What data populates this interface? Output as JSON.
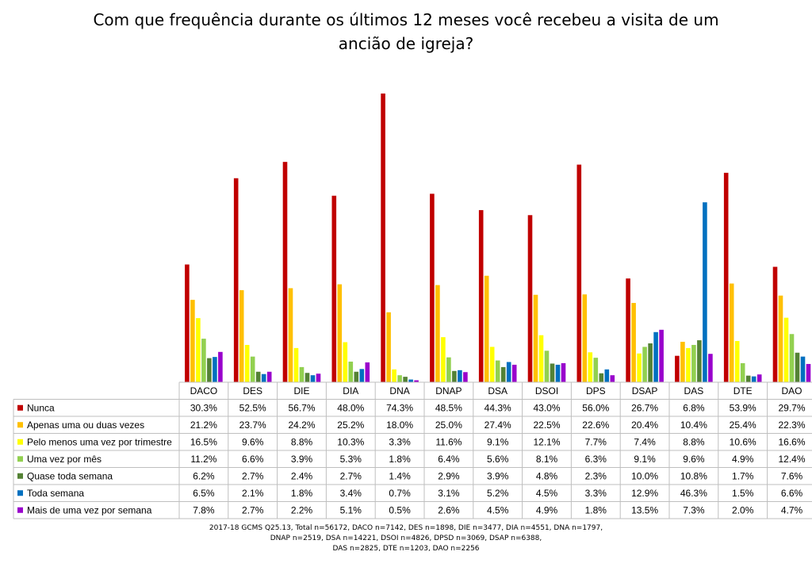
{
  "chart_data": {
    "type": "bar",
    "title": [
      "Com que frequência durante os últimos 12 meses você recebeu a visita de um",
      "ancião de igreja?"
    ],
    "xlabel": "",
    "ylabel": "",
    "ylim": [
      0,
      80
    ],
    "grid": false,
    "legend": "data-table-left",
    "categories": [
      "DACO",
      "DES",
      "DIE",
      "DIA",
      "DNA",
      "DNAP",
      "DSA",
      "DSOI",
      "DPS",
      "DSAP",
      "DAS",
      "DTE",
      "DAO"
    ],
    "series": [
      {
        "name": "Nunca",
        "color": "#C00000",
        "values": [
          30.3,
          52.5,
          56.7,
          48.0,
          74.3,
          48.5,
          44.3,
          43.0,
          56.0,
          26.7,
          6.8,
          53.9,
          29.7
        ]
      },
      {
        "name": "Apenas uma ou duas vezes",
        "color": "#FFC000",
        "values": [
          21.2,
          23.7,
          24.2,
          25.2,
          18.0,
          25.0,
          27.4,
          22.5,
          22.6,
          20.4,
          10.4,
          25.4,
          22.3
        ]
      },
      {
        "name": "Pelo menos uma vez por trimestre",
        "color": "#FFFF00",
        "values": [
          16.5,
          9.6,
          8.8,
          10.3,
          3.3,
          11.6,
          9.1,
          12.1,
          7.7,
          7.4,
          8.8,
          10.6,
          16.6
        ]
      },
      {
        "name": "Uma vez por mês",
        "color": "#92D050",
        "values": [
          11.2,
          6.6,
          3.9,
          5.3,
          1.8,
          6.4,
          5.6,
          8.1,
          6.3,
          9.1,
          9.6,
          4.9,
          12.4
        ]
      },
      {
        "name": "Quase toda semana",
        "color": "#548235",
        "values": [
          6.2,
          2.7,
          2.4,
          2.7,
          1.4,
          2.9,
          3.9,
          4.8,
          2.3,
          10.0,
          10.8,
          1.7,
          7.6
        ]
      },
      {
        "name": "Toda semana",
        "color": "#0070C0",
        "values": [
          6.5,
          2.1,
          1.8,
          3.4,
          0.7,
          3.1,
          5.2,
          4.5,
          3.3,
          12.9,
          46.3,
          1.5,
          6.6
        ]
      },
      {
        "name": "Mais de uma vez por semana",
        "color": "#9900CC",
        "values": [
          7.8,
          2.7,
          2.2,
          5.1,
          0.5,
          2.6,
          4.5,
          4.9,
          1.8,
          13.5,
          7.3,
          2.0,
          4.7
        ]
      }
    ],
    "table": {
      "rows": [
        [
          "30.3%",
          "52.5%",
          "56.7%",
          "48.0%",
          "74.3%",
          "48.5%",
          "44.3%",
          "43.0%",
          "56.0%",
          "26.7%",
          "6.8%",
          "53.9%",
          "29.7%"
        ],
        [
          "21.2%",
          "23.7%",
          "24.2%",
          "25.2%",
          "18.0%",
          "25.0%",
          "27.4%",
          "22.5%",
          "22.6%",
          "20.4%",
          "10.4%",
          "25.4%",
          "22.3%"
        ],
        [
          "16.5%",
          "9.6%",
          "8.8%",
          "10.3%",
          "3.3%",
          "11.6%",
          "9.1%",
          "12.1%",
          "7.7%",
          "7.4%",
          "8.8%",
          "10.6%",
          "16.6%"
        ],
        [
          "11.2%",
          "6.6%",
          "3.9%",
          "5.3%",
          "1.8%",
          "6.4%",
          "5.6%",
          "8.1%",
          "6.3%",
          "9.1%",
          "9.6%",
          "4.9%",
          "12.4%"
        ],
        [
          "6.2%",
          "2.7%",
          "2.4%",
          "2.7%",
          "1.4%",
          "2.9%",
          "3.9%",
          "4.8%",
          "2.3%",
          "10.0%",
          "10.8%",
          "1.7%",
          "7.6%"
        ],
        [
          "6.5%",
          "2.1%",
          "1.8%",
          "3.4%",
          "0.7%",
          "3.1%",
          "5.2%",
          "4.5%",
          "3.3%",
          "12.9%",
          "46.3%",
          "1.5%",
          "6.6%"
        ],
        [
          "7.8%",
          "2.7%",
          "2.2%",
          "5.1%",
          "0.5%",
          "2.6%",
          "4.5%",
          "4.9%",
          "1.8%",
          "13.5%",
          "7.3%",
          "2.0%",
          "4.7%"
        ]
      ]
    },
    "footnote": [
      "2017-18 GCMS Q25.13, Total n=56172, DACO n=7142, DES n=1898, DIE n=3477, DIA n=4551, DNA n=1797,",
      "DNAP n=2519, DSA n=14221, DSOI n=4826, DPSD n=3069, DSAP n=6388,",
      "DAS n=2825, DTE n=1203, DAO n=2256"
    ]
  }
}
